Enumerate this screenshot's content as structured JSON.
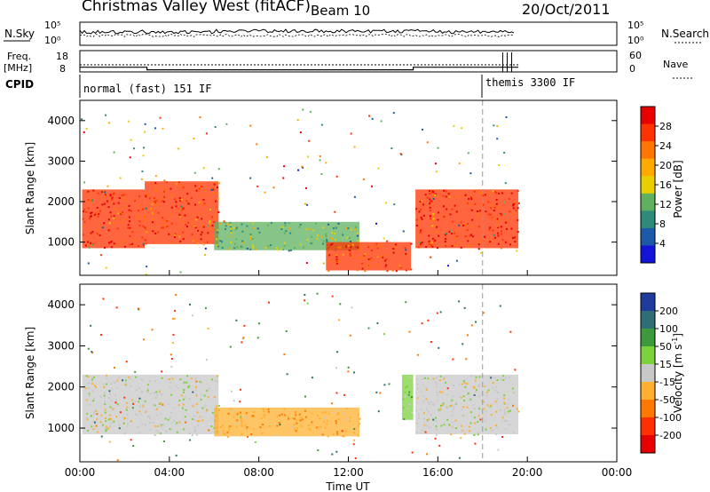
{
  "header": {
    "title": "Christmas Valley West (fitACF)",
    "beam": "Beam 10",
    "date": "20/Oct/2011"
  },
  "noise_panel": {
    "left_label": "N.Sky",
    "right_label": "N.Search",
    "left_ticks": [
      "10^5",
      "10^0"
    ],
    "right_ticks": [
      "10^5",
      "10^0"
    ]
  },
  "freq_panel": {
    "left_label_1": "Freq.",
    "left_label_2": "[MHz]",
    "right_label": "Nave",
    "left_ticks": [
      "18",
      "8"
    ],
    "right_ticks": [
      "60",
      "0"
    ]
  },
  "cpid": {
    "label": "CPID",
    "segments": [
      {
        "text": "normal (fast) 151 IF",
        "start_hour": 0
      },
      {
        "text": "themis 3300 IF",
        "start_hour": 18
      }
    ]
  },
  "power_panel": {
    "ylabel": "Slant Range [km]",
    "yticks": [
      "4000",
      "3000",
      "2000",
      "1000"
    ],
    "colorbar_label": "Power [dB]",
    "colorbar_ticks": [
      "28",
      "24",
      "20",
      "16",
      "12",
      "8",
      "4"
    ],
    "colorbar_colors": [
      "#e60000",
      "#ff3300",
      "#ff7700",
      "#ffaa00",
      "#e8d000",
      "#5fb05f",
      "#2e8b7a",
      "#1c5aa8",
      "#1414d8"
    ]
  },
  "velocity_panel": {
    "ylabel": "Slant Range [km]",
    "yticks": [
      "4000",
      "3000",
      "2000",
      "1000"
    ],
    "colorbar_label": "Velocity [m s^-1]",
    "colorbar_ticks": [
      "200",
      "100",
      "50",
      "15",
      "-15",
      "-50",
      "-100",
      "-200"
    ],
    "colorbar_colors": [
      "#1f3c9c",
      "#2f6e74",
      "#3c9a3c",
      "#7cd23c",
      "#c8c8c8",
      "#ffb030",
      "#ff7800",
      "#ff3000",
      "#e60000"
    ]
  },
  "xaxis": {
    "label": "Time UT",
    "ticks": [
      "00:00",
      "04:00",
      "08:00",
      "12:00",
      "16:00",
      "20:00",
      "00:00"
    ]
  },
  "chart_data": [
    {
      "type": "heatmap",
      "title": "Christmas Valley West (fitACF) Beam 10 20/Oct/2011",
      "quantity": "Power",
      "xlabel": "Time UT",
      "ylabel": "Slant Range [km]",
      "xlim_hours": [
        0,
        24
      ],
      "ylim_km": [
        180,
        4500
      ],
      "colorbar": {
        "label": "Power [dB]",
        "range": [
          0,
          30
        ]
      },
      "features": [
        {
          "region": "near range echoes",
          "t": [
            0.1,
            2.9
          ],
          "range_km": [
            850,
            2300
          ],
          "value_db": 28
        },
        {
          "region": "near range echoes",
          "t": [
            2.9,
            6.2
          ],
          "range_km": [
            950,
            2500
          ],
          "value_db": 26
        },
        {
          "region": "mid range band",
          "t": [
            6.0,
            12.5
          ],
          "range_km": [
            800,
            1500
          ],
          "value_db": 12
        },
        {
          "region": "near range band",
          "t": [
            11.0,
            14.8
          ],
          "range_km": [
            300,
            1000
          ],
          "value_db": 26
        },
        {
          "region": "ionospheric scatter",
          "t": [
            15.0,
            19.6
          ],
          "range_km": [
            850,
            2300
          ],
          "value_db": 28
        }
      ]
    },
    {
      "type": "heatmap",
      "quantity": "Velocity",
      "xlabel": "Time UT",
      "ylabel": "Slant Range [km]",
      "xlim_hours": [
        0,
        24
      ],
      "ylim_km": [
        180,
        4500
      ],
      "colorbar": {
        "label": "Velocity [m s^-1]",
        "range": [
          -250,
          250
        ]
      },
      "features": [
        {
          "region": "ground scatter",
          "t": [
            0.1,
            6.2
          ],
          "range_km": [
            850,
            2300
          ],
          "value_ms": 0
        },
        {
          "region": "negative velocity band",
          "t": [
            6.0,
            12.5
          ],
          "range_km": [
            800,
            1500
          ],
          "value_ms": -40
        },
        {
          "region": "ground scatter",
          "t": [
            15.0,
            19.6
          ],
          "range_km": [
            850,
            2300
          ],
          "value_ms": 0
        },
        {
          "region": "positive velocity spike",
          "t": [
            14.4,
            14.9
          ],
          "range_km": [
            1200,
            2300
          ],
          "value_ms": 30
        }
      ]
    }
  ]
}
